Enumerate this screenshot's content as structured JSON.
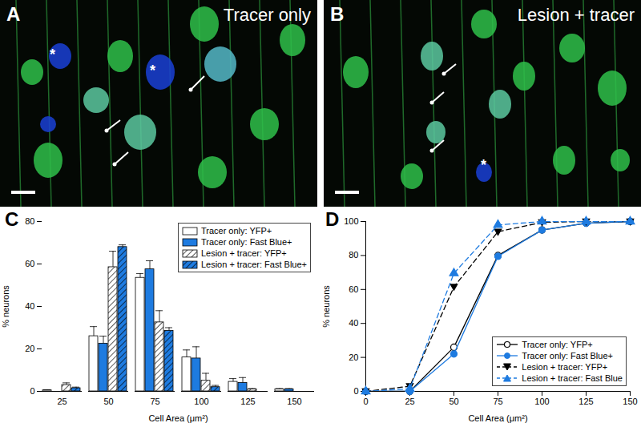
{
  "images": [
    {
      "panel": "A",
      "title": "Tracer only",
      "annotations": [
        "*",
        "*"
      ]
    },
    {
      "panel": "B",
      "title": "Lesion + tracer",
      "annotations": [
        "*"
      ]
    }
  ],
  "chart_data": [
    {
      "type": "bar",
      "title": "C",
      "x_label": "Cell Area (μm²)",
      "y_label": "% neurons",
      "categories": [
        25,
        50,
        75,
        100,
        125,
        150
      ],
      "ylim": [
        0,
        80
      ],
      "yticks": [
        0,
        20,
        40,
        60,
        80
      ],
      "legend": "upper right",
      "series": [
        {
          "name": "Tracer only: YFP+",
          "color": "#ffffff",
          "values": [
            0.5,
            26,
            53.5,
            16,
            4.5,
            1
          ],
          "errors": [
            0.2,
            4.5,
            2,
            3.5,
            1.5,
            0.3
          ]
        },
        {
          "name": "Tracer only: Fast Blue+",
          "color": "#1e7be0",
          "values": [
            0,
            22.5,
            57.5,
            15.5,
            4,
            1
          ],
          "errors": [
            0,
            3.5,
            4,
            5.5,
            2.5,
            0.3
          ]
        },
        {
          "name": "Lesion + tracer: YFP+",
          "color": "#ffffff",
          "marker": "hatched",
          "values": [
            3,
            58.5,
            32.5,
            5,
            1,
            0
          ],
          "errors": [
            1,
            7.5,
            5.5,
            3.5,
            0.3,
            0
          ]
        },
        {
          "name": "Lesion + tracer: Fast Blue+",
          "color": "#1e7be0",
          "marker": "hatched",
          "values": [
            1.5,
            68,
            28.5,
            2,
            0,
            0
          ],
          "errors": [
            0.5,
            1,
            1.5,
            0.8,
            0,
            0
          ]
        }
      ]
    },
    {
      "type": "line",
      "title": "D",
      "x_label": "Cell Area (μm²)",
      "y_label": "% neurons",
      "x": [
        0,
        25,
        50,
        75,
        100,
        125,
        150
      ],
      "xlim": [
        0,
        150
      ],
      "xticks": [
        0,
        25,
        50,
        75,
        100,
        125,
        150
      ],
      "ylim": [
        0,
        100
      ],
      "yticks": [
        0,
        20,
        40,
        60,
        80,
        100
      ],
      "legend": "lower right",
      "series": [
        {
          "name": "Tracer only: YFP+",
          "color": "#000000",
          "marker": "circle-open",
          "line_style": "solid",
          "values": [
            0,
            0,
            26,
            80,
            95,
            99,
            100
          ]
        },
        {
          "name": "Tracer only: Fast Blue+",
          "color": "#1e7be0",
          "marker": "circle",
          "line_style": "solid",
          "values": [
            0,
            0,
            22,
            79.5,
            95,
            99,
            100
          ]
        },
        {
          "name": "Lesion + tracer: YFP+",
          "color": "#000000",
          "marker": "triangle-down",
          "line_style": "dashed",
          "values": [
            0,
            3,
            61.5,
            94,
            99.5,
            100,
            100
          ]
        },
        {
          "name": "Lesion + tracer: Fast Blue",
          "color": "#1e7be0",
          "marker": "triangle",
          "line_style": "dashed",
          "values": [
            0,
            1.5,
            69.5,
            98,
            100,
            100,
            100
          ]
        }
      ]
    }
  ]
}
